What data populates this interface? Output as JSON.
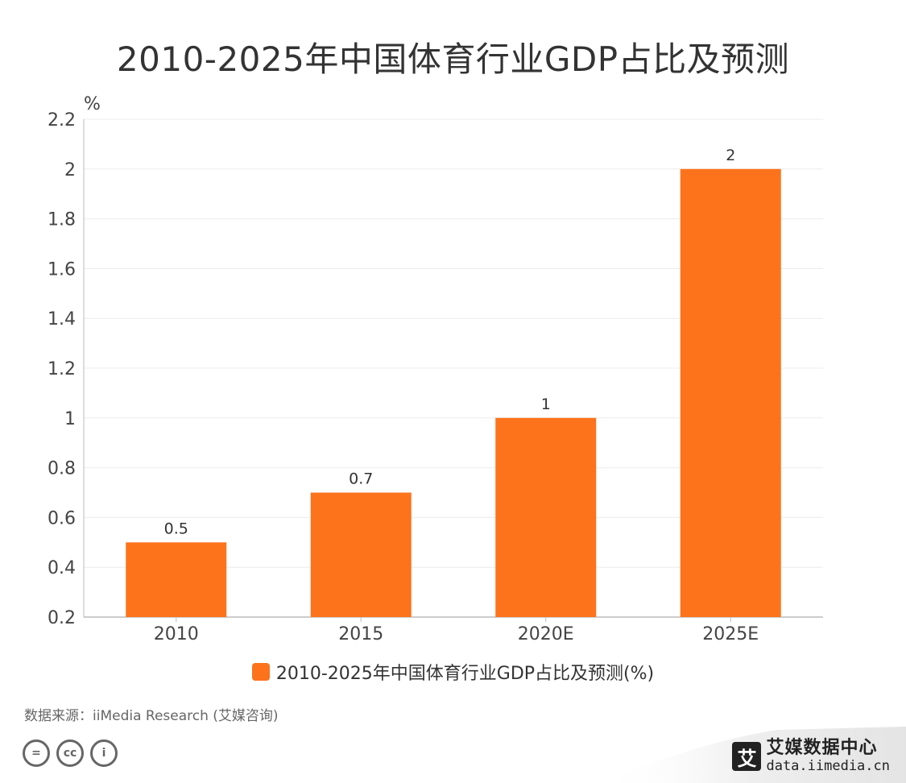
{
  "chart_data": {
    "type": "bar",
    "title": "2010-2025年中国体育行业GDP占比及预测",
    "ylabel": "%",
    "xlabel": "",
    "categories": [
      "2010",
      "2015",
      "2020E",
      "2025E"
    ],
    "series": [
      {
        "name": "2010-2025年中国体育行业GDP占比及预测(%)",
        "values": [
          0.5,
          0.7,
          1,
          2
        ]
      }
    ],
    "data_labels": [
      "0.5",
      "0.7",
      "1",
      "2"
    ],
    "ylim": [
      0.2,
      2.2
    ],
    "yticks": [
      "0.2",
      "0.4",
      "0.6",
      "0.8",
      "1",
      "1.2",
      "1.4",
      "1.6",
      "1.8",
      "2",
      "2.2"
    ],
    "grid": true,
    "legend_position": "bottom",
    "bar_color": "#fc731c"
  },
  "footer": {
    "source": "数据来源：iiMedia Research (艾媒咨询)",
    "license_icons": [
      "equals-icon",
      "cc-icon",
      "person-icon"
    ],
    "license_glyphs": [
      "=",
      "cc",
      "i"
    ],
    "brand_mark": "艾",
    "brand_name": "艾媒数据中心",
    "brand_url": "data.iimedia.cn"
  }
}
